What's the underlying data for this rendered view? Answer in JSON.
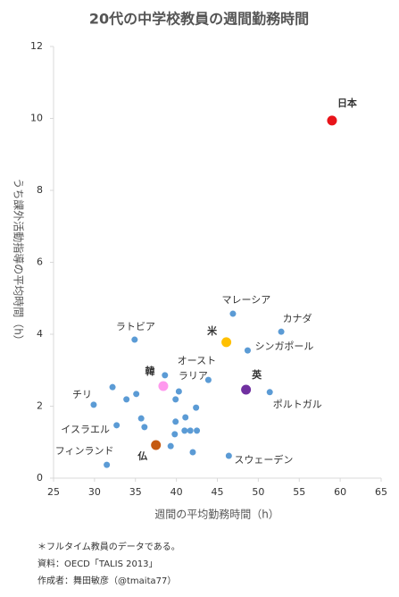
{
  "chart_data": {
    "type": "scatter",
    "title": "20代の中学校教員の週間勤務時間",
    "x_label": "週間の平均勤務時間（h）",
    "y_label": "うち課外活動指導の平均時間（h）",
    "xlim": [
      25,
      65
    ],
    "xticks": [
      25,
      30,
      35,
      40,
      45,
      50,
      55,
      60,
      65
    ],
    "ylim": [
      0,
      12
    ],
    "yticks": [
      0,
      2,
      4,
      6,
      8,
      10,
      12
    ],
    "points": [
      {
        "x": 59.0,
        "y": 9.94,
        "label": "日本",
        "color": "#e8141a"
      },
      {
        "x": 46.9,
        "y": 4.57,
        "label": "マレーシア",
        "color": "#5b9bd5"
      },
      {
        "x": 52.8,
        "y": 4.07,
        "label": "カナダ",
        "color": "#5b9bd5"
      },
      {
        "x": 34.9,
        "y": 3.85,
        "label": "ラトビア",
        "color": "#5b9bd5"
      },
      {
        "x": 46.1,
        "y": 3.78,
        "label": "米",
        "color": "#ffc000"
      },
      {
        "x": 48.7,
        "y": 3.55,
        "label": "シンガポール",
        "color": "#5b9bd5"
      },
      {
        "x": 43.9,
        "y": 2.73,
        "label": "オーストラリア",
        "color": "#5b9bd5"
      },
      {
        "x": 38.4,
        "y": 2.56,
        "label": "韓",
        "color": "#ff99ee"
      },
      {
        "x": 48.5,
        "y": 2.46,
        "label": "英",
        "color": "#7030a0"
      },
      {
        "x": 51.4,
        "y": 2.39,
        "label": "ポルトガル",
        "color": "#5b9bd5"
      },
      {
        "x": 29.9,
        "y": 2.04,
        "label": "チリ",
        "color": "#5b9bd5"
      },
      {
        "x": 32.7,
        "y": 1.47,
        "label": "イスラエル",
        "color": "#5b9bd5"
      },
      {
        "x": 37.5,
        "y": 0.92,
        "label": "仏",
        "color": "#c55a11"
      },
      {
        "x": 31.5,
        "y": 0.37,
        "label": "フィンランド",
        "color": "#5b9bd5"
      },
      {
        "x": 46.4,
        "y": 0.62,
        "label": "スウェーデン",
        "color": "#5b9bd5"
      },
      {
        "x": 32.2,
        "y": 2.53,
        "color": "#5b9bd5"
      },
      {
        "x": 33.9,
        "y": 2.19,
        "color": "#5b9bd5"
      },
      {
        "x": 35.1,
        "y": 2.34,
        "color": "#5b9bd5"
      },
      {
        "x": 35.7,
        "y": 1.66,
        "color": "#5b9bd5"
      },
      {
        "x": 36.1,
        "y": 1.42,
        "color": "#5b9bd5"
      },
      {
        "x": 38.6,
        "y": 2.86,
        "color": "#5b9bd5"
      },
      {
        "x": 40.3,
        "y": 2.41,
        "color": "#5b9bd5"
      },
      {
        "x": 39.9,
        "y": 2.19,
        "color": "#5b9bd5"
      },
      {
        "x": 42.4,
        "y": 1.96,
        "color": "#5b9bd5"
      },
      {
        "x": 41.1,
        "y": 1.69,
        "color": "#5b9bd5"
      },
      {
        "x": 39.9,
        "y": 1.57,
        "color": "#5b9bd5"
      },
      {
        "x": 42.5,
        "y": 1.32,
        "color": "#5b9bd5"
      },
      {
        "x": 41.0,
        "y": 1.32,
        "color": "#5b9bd5"
      },
      {
        "x": 41.7,
        "y": 1.32,
        "color": "#5b9bd5"
      },
      {
        "x": 39.8,
        "y": 1.22,
        "color": "#5b9bd5"
      },
      {
        "x": 39.3,
        "y": 0.89,
        "color": "#5b9bd5"
      },
      {
        "x": 42.0,
        "y": 0.72,
        "color": "#5b9bd5"
      }
    ],
    "notes": [
      "＊フルタイム教員のデータである。",
      "資料：OECD「TALIS 2013」",
      "作成者：舞田敏彦（@tmaita77）"
    ]
  }
}
